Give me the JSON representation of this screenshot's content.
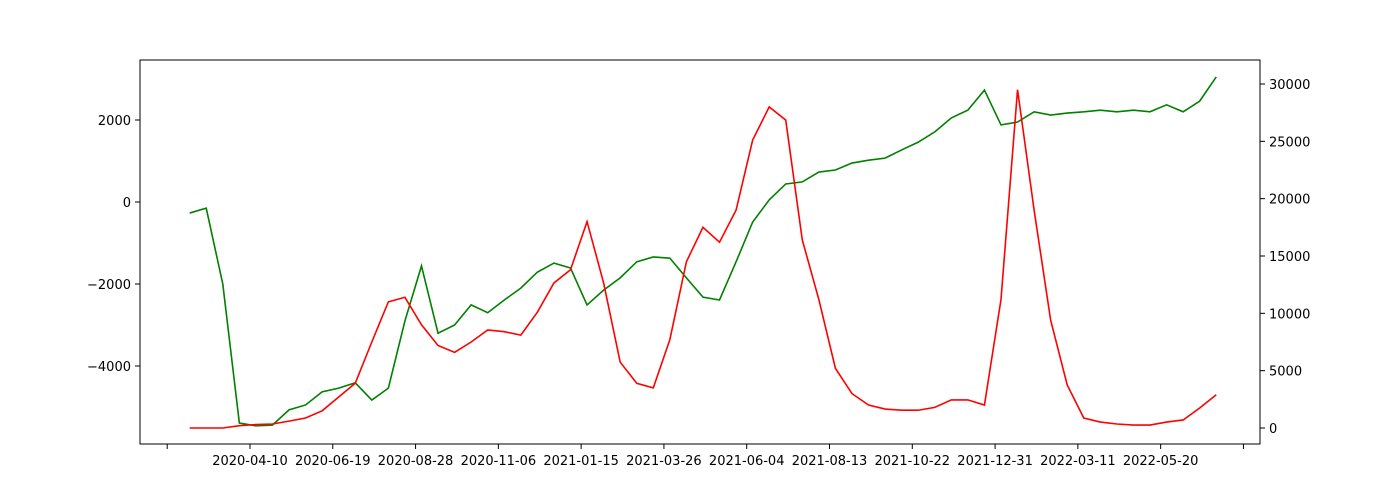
{
  "chart_data": {
    "type": "line",
    "x": [
      "2020-02-19",
      "2020-03-04",
      "2020-03-18",
      "2020-04-01",
      "2020-04-15",
      "2020-04-29",
      "2020-05-13",
      "2020-05-27",
      "2020-06-10",
      "2020-06-24",
      "2020-07-08",
      "2020-07-22",
      "2020-08-05",
      "2020-08-19",
      "2020-09-02",
      "2020-09-16",
      "2020-09-30",
      "2020-10-14",
      "2020-10-28",
      "2020-11-11",
      "2020-11-25",
      "2020-12-09",
      "2020-12-23",
      "2021-01-06",
      "2021-01-20",
      "2021-02-03",
      "2021-02-17",
      "2021-03-03",
      "2021-03-17",
      "2021-03-31",
      "2021-04-14",
      "2021-04-28",
      "2021-05-12",
      "2021-05-26",
      "2021-06-09",
      "2021-06-23",
      "2021-07-07",
      "2021-07-21",
      "2021-08-04",
      "2021-08-18",
      "2021-09-01",
      "2021-09-15",
      "2021-09-29",
      "2021-10-13",
      "2021-10-27",
      "2021-11-10",
      "2021-11-24",
      "2021-12-08",
      "2021-12-22",
      "2022-01-05",
      "2022-01-19",
      "2022-02-02",
      "2022-02-16",
      "2022-03-02",
      "2022-03-16",
      "2022-03-30",
      "2022-04-13",
      "2022-04-27",
      "2022-05-11",
      "2022-05-25",
      "2022-06-08",
      "2022-06-22",
      "2022-07-06"
    ],
    "series": [
      {
        "color": "green",
        "values": [
          -270,
          -150,
          -2000,
          -5390,
          -5460,
          -5440,
          -5070,
          -4950,
          -4630,
          -4540,
          -4410,
          -4830,
          -4540,
          -2900,
          -1560,
          -3200,
          -3000,
          -2510,
          -2700,
          -2390,
          -2100,
          -1710,
          -1490,
          -1610,
          -2510,
          -2150,
          -1850,
          -1460,
          -1340,
          -1370,
          -1850,
          -2320,
          -2390,
          -1460,
          -490,
          50,
          440,
          490,
          730,
          780,
          950,
          1020,
          1070,
          1270,
          1460,
          1710,
          2050,
          2240,
          2730,
          1880,
          1950,
          2200,
          2120,
          2170,
          2200,
          2240,
          2200,
          2240,
          2200,
          2370,
          2200,
          2460,
          3050
        ]
      },
      {
        "color": "red",
        "axis": "y2",
        "values": [
          0,
          0,
          0,
          200,
          300,
          350,
          600,
          870,
          1500,
          2700,
          3900,
          7500,
          11000,
          11400,
          9000,
          7200,
          6600,
          7500,
          8550,
          8400,
          8100,
          10100,
          12650,
          13800,
          18000,
          12650,
          5750,
          3900,
          3500,
          7700,
          14500,
          17500,
          16200,
          19000,
          25100,
          28000,
          26850,
          16400,
          11200,
          5200,
          3000,
          2000,
          1650,
          1550,
          1550,
          1800,
          2450,
          2450,
          2000,
          11200,
          29500,
          19000,
          9400,
          3750,
          870,
          520,
          350,
          260,
          260,
          520,
          700,
          1740,
          2900
        ]
      }
    ],
    "xlim": [
      "2020-01-08",
      "2022-08-12"
    ],
    "xticks": [
      {
        "value": "2020-01-31",
        "label": null
      },
      "2020-04-10",
      "2020-06-19",
      "2020-08-28",
      "2020-11-06",
      "2021-01-15",
      "2021-03-26",
      "2021-06-04",
      "2021-08-13",
      "2021-10-22",
      "2021-12-31",
      "2022-03-11",
      "2022-05-20",
      {
        "value": "2022-07-29",
        "label": null
      }
    ],
    "ylim": [
      -5902,
      3463
    ],
    "yticks": [
      {
        "value": -4000,
        "label": "−4000"
      },
      {
        "value": -2000,
        "label": "−2000"
      },
      0,
      2000
    ],
    "y2lim": [
      -1395,
      32092
    ],
    "y2ticks": [
      0,
      5000,
      10000,
      15000,
      20000,
      25000,
      30000
    ]
  }
}
